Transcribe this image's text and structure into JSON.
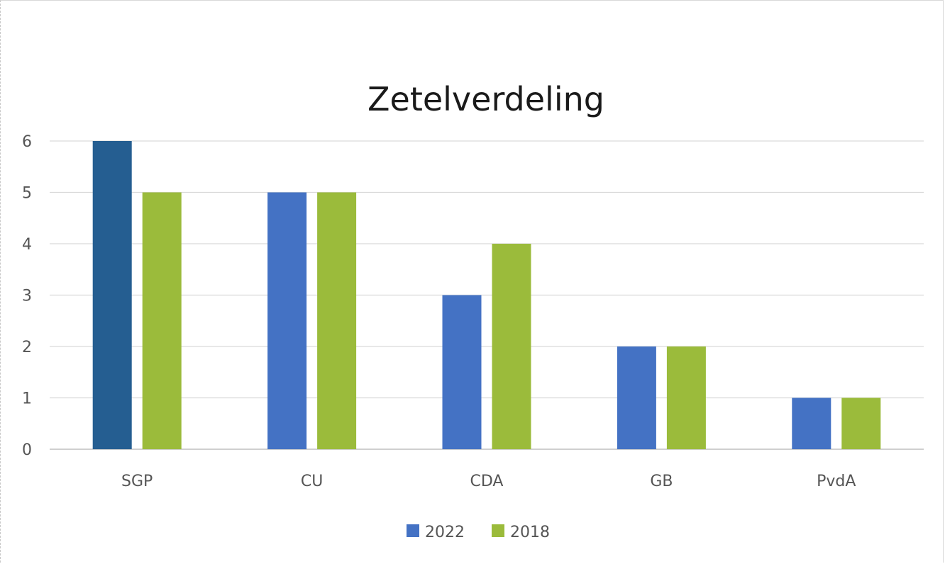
{
  "chart_data": {
    "type": "bar",
    "title": "Zetelverdeling",
    "categories": [
      "SGP",
      "CU",
      "CDA",
      "GB",
      "PvdA"
    ],
    "series": [
      {
        "name": "2022",
        "values": [
          6,
          5,
          3,
          2,
          1
        ],
        "color": "#4472C4"
      },
      {
        "name": "2018",
        "values": [
          5,
          5,
          4,
          2,
          1
        ],
        "color": "#9BBB3B"
      }
    ],
    "highlight": {
      "series": 0,
      "category": 0,
      "color": "#255E91"
    },
    "ylim": [
      0,
      6
    ],
    "yticks": [
      "0",
      "1",
      "2",
      "3",
      "4",
      "5",
      "6"
    ],
    "grid": true,
    "legend": "bottom",
    "gridColor": "#d9d9d9",
    "axisColor": "#bfbfbf"
  }
}
